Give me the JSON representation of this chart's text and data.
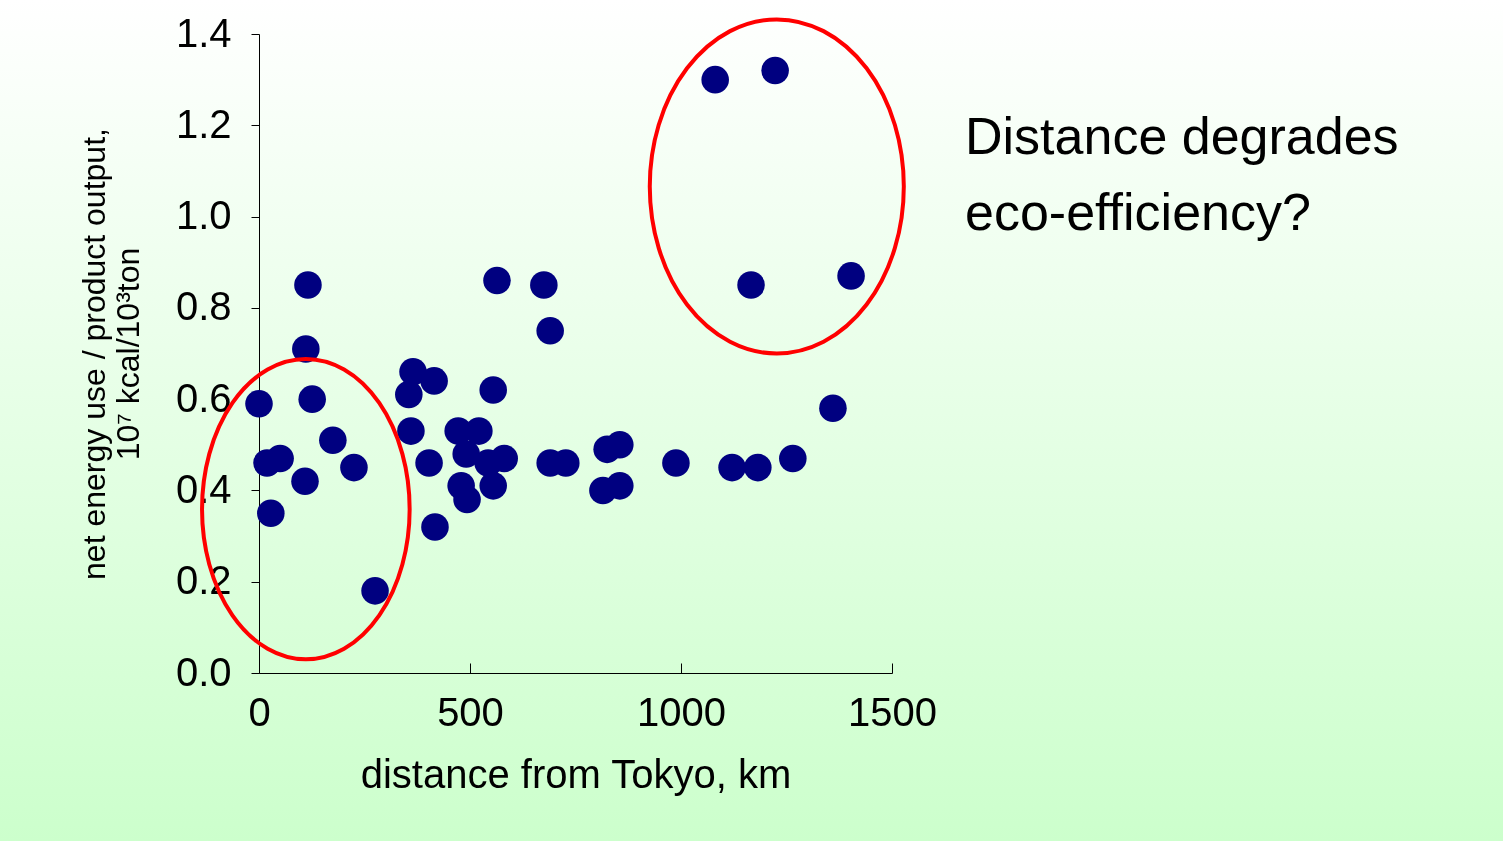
{
  "chart_data": {
    "type": "scatter",
    "xlabel": "distance from Tokyo, km",
    "ylabel": "net energy use / product output,\n10⁷ kcal/10³ton",
    "annotations": [
      "Distance degrades eco-efficiency?"
    ],
    "xlim": [
      0,
      1500
    ],
    "xticks": [
      0,
      500,
      {
        "value": 1000,
        "label": "1000"
      },
      {
        "value": 1500,
        "label": "1500"
      }
    ],
    "ylim": [
      0,
      1.4
    ],
    "yticks": [
      {
        "value": 0,
        "label": "0.0"
      },
      0.2,
      0.4,
      0.6,
      0.8,
      {
        "value": 1,
        "label": "1.0"
      },
      1.2,
      1.4
    ],
    "grid": false,
    "marker": "circle",
    "series": [
      {
        "color": "#000080",
        "x": [
          0,
          19,
          50,
          28,
          109,
          116,
          111,
          126,
          175,
          225,
          275,
          365,
          355,
          360,
          415,
          403,
          417,
          472,
          521,
          491,
          479,
          493,
          543,
          555,
          581,
          555,
          564,
          675,
          690,
          690,
          727,
          825,
          855,
          815,
          855,
          988,
          1121,
          1182,
          1265,
          1360,
          1081,
          1223,
          1166,
          1403
        ],
        "values": [
          0.59,
          0.46,
          0.47,
          0.35,
          0.42,
          0.85,
          0.71,
          0.6,
          0.51,
          0.45,
          0.18,
          0.66,
          0.61,
          0.53,
          0.64,
          0.46,
          0.32,
          0.53,
          0.53,
          0.48,
          0.41,
          0.38,
          0.46,
          0.41,
          0.47,
          0.62,
          0.86,
          0.85,
          0.75,
          0.46,
          0.46,
          0.49,
          0.5,
          0.4,
          0.41,
          0.46,
          0.45,
          0.45,
          0.47,
          0.58,
          1.3,
          1.32,
          0.85,
          0.87
        ]
      }
    ]
  }
}
